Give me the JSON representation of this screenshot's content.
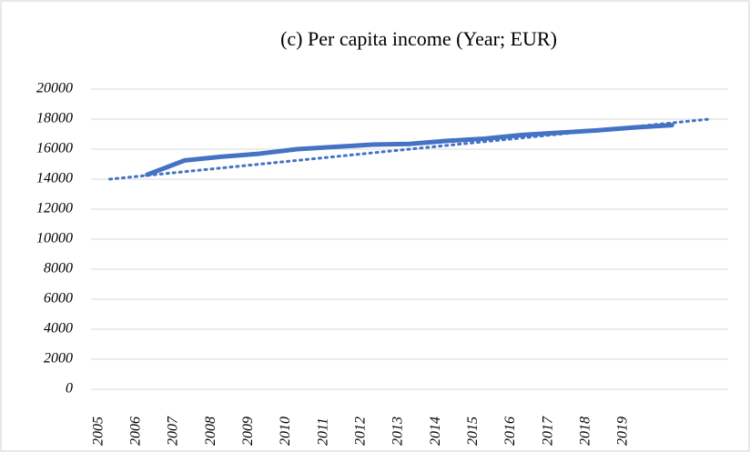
{
  "chart_data": {
    "type": "line",
    "title": "(c) Per capita income (Year; EUR)",
    "categories": [
      "2005",
      "2006",
      "2007",
      "2008",
      "2009",
      "2010",
      "2011",
      "2012",
      "2013",
      "2014",
      "2015",
      "2016",
      "2017",
      "2018",
      "2019",
      null,
      null
    ],
    "series": [
      {
        "color": "#4472c4",
        "style": "solid",
        "values": [
          null,
          14300,
          15250,
          15500,
          15700,
          16000,
          16150,
          16300,
          16350,
          16550,
          16700,
          16950,
          17100,
          17250,
          17450,
          17600,
          null
        ]
      },
      {
        "color": "#4472c4",
        "style": "dotted",
        "values": [
          14000,
          14250,
          14500,
          14750,
          15000,
          15250,
          15500,
          15750,
          16000,
          16250,
          16500,
          16750,
          17000,
          17250,
          17500,
          17750,
          18000
        ]
      }
    ],
    "ylim": [
      0,
      20000
    ],
    "yticks": [
      0,
      2000,
      4000,
      6000,
      8000,
      10000,
      12000,
      14000,
      16000,
      18000,
      20000
    ],
    "grid": true
  }
}
